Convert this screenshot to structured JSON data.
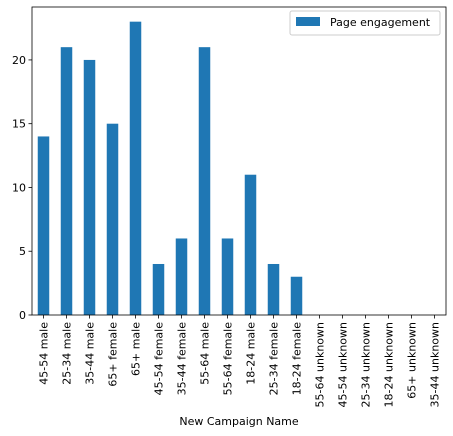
{
  "chart_data": {
    "type": "bar",
    "title": "",
    "xlabel": "New Campaign Name",
    "ylabel": "",
    "ylim": [
      0,
      24.15
    ],
    "yticks": [
      0,
      5,
      10,
      15,
      20
    ],
    "grid": false,
    "legend_position": "top-right",
    "categories": [
      "45-54 male",
      "25-34 male",
      "35-44 male",
      "65+ female",
      "65+ male",
      "45-54 female",
      "35-44 female",
      "55-64 male",
      "55-64 female",
      "18-24 male",
      "25-34 female",
      "18-24 female",
      "55-64 unknown",
      "45-54 unknown",
      "25-34 unknown",
      "18-24 unknown",
      "65+ unknown",
      "35-44 unknown"
    ],
    "series": [
      {
        "name": "Page engagement",
        "color": "#1f77b4",
        "values": [
          14,
          21,
          20,
          15,
          23,
          4,
          6,
          21,
          6,
          11,
          4,
          3,
          0,
          0,
          0,
          0,
          0,
          0
        ]
      }
    ]
  }
}
